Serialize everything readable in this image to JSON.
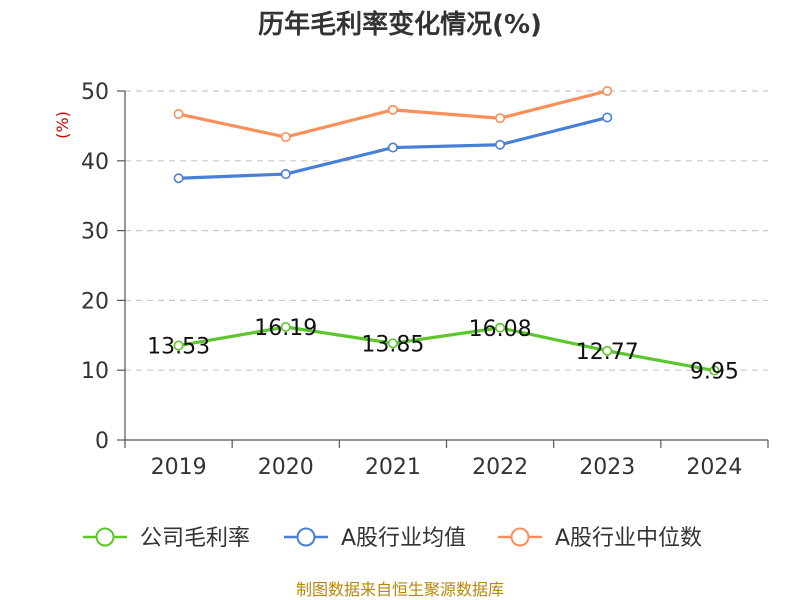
{
  "chart_data": {
    "type": "line",
    "title": "历年毛利率变化情况(%)",
    "ylabel": "(%)",
    "xlabel": "",
    "categories": [
      "2019",
      "2020",
      "2021",
      "2022",
      "2023",
      "2024"
    ],
    "ylim": [
      0,
      50
    ],
    "yticks": [
      0,
      10,
      20,
      30,
      40,
      50
    ],
    "grid": "horizontal dashed",
    "legend_position": "bottom",
    "series": [
      {
        "name": "公司毛利率",
        "color": "#5cc62c",
        "values": [
          13.53,
          16.19,
          13.85,
          16.08,
          12.77,
          9.95
        ],
        "labels": [
          "13.53",
          "16.19",
          "13.85",
          "16.08",
          "12.77",
          "9.95"
        ]
      },
      {
        "name": "A股行业均值",
        "color": "#4a7fd6",
        "values": [
          37.5,
          38.1,
          41.9,
          42.3,
          46.2,
          null
        ]
      },
      {
        "name": "A股行业中位数",
        "color": "#f7905a",
        "values": [
          46.7,
          43.4,
          47.3,
          46.1,
          50.0,
          null
        ]
      }
    ]
  },
  "source": "制图数据来自恒生聚源数据库"
}
